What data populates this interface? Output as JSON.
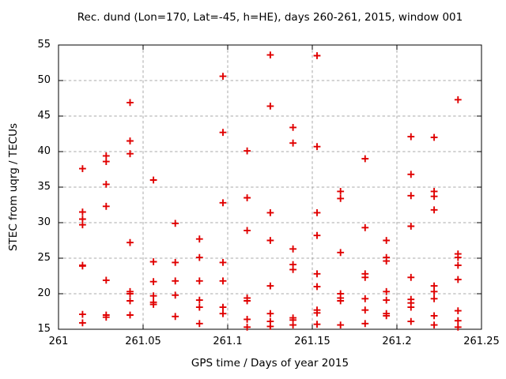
{
  "chart_data": {
    "type": "scatter",
    "title": "Rec. dund (Lon=170, Lat=-45, h=HE), days 260-261, 2015, window 001",
    "xlabel": "GPS time / Days of year 2015",
    "ylabel": "STEC from uqrg / TECUs",
    "xlim": [
      261,
      261.25
    ],
    "ylim": [
      15,
      55
    ],
    "xticks": [
      261,
      261.05,
      261.1,
      261.15,
      261.2,
      261.25
    ],
    "xtick_labels": [
      "261",
      "261.05",
      "261.1",
      "261.15",
      "261.2",
      "261.25"
    ],
    "yticks": [
      15,
      20,
      25,
      30,
      35,
      40,
      45,
      50,
      55
    ],
    "ytick_labels": [
      "15",
      "20",
      "25",
      "30",
      "35",
      "40",
      "45",
      "50",
      "55"
    ],
    "grid": true,
    "legend_position": "none",
    "marker": "plus",
    "marker_color": "#e00000",
    "grid_color": "#a8a8a8",
    "border_color": "#000000",
    "points": [
      [
        261.0142,
        37.6
      ],
      [
        261.0142,
        31.5
      ],
      [
        261.0142,
        30.5
      ],
      [
        261.0142,
        29.7
      ],
      [
        261.0142,
        24.0
      ],
      [
        261.0142,
        23.9
      ],
      [
        261.0142,
        17.1
      ],
      [
        261.0142,
        15.9
      ],
      [
        261.0282,
        39.4
      ],
      [
        261.0282,
        38.6
      ],
      [
        261.0282,
        35.4
      ],
      [
        261.0282,
        32.3
      ],
      [
        261.0282,
        21.9
      ],
      [
        261.0282,
        17.0
      ],
      [
        261.0282,
        16.7
      ],
      [
        261.0423,
        46.9
      ],
      [
        261.0423,
        41.5
      ],
      [
        261.0423,
        39.7
      ],
      [
        261.0423,
        27.2
      ],
      [
        261.0423,
        20.3
      ],
      [
        261.0423,
        20.0
      ],
      [
        261.0423,
        19.0
      ],
      [
        261.0423,
        17.0
      ],
      [
        261.0561,
        36.0
      ],
      [
        261.0561,
        24.5
      ],
      [
        261.0561,
        21.7
      ],
      [
        261.0561,
        19.7
      ],
      [
        261.0561,
        18.8
      ],
      [
        261.0561,
        18.5
      ],
      [
        261.069,
        29.9
      ],
      [
        261.069,
        24.4
      ],
      [
        261.069,
        21.8
      ],
      [
        261.069,
        19.8
      ],
      [
        261.069,
        16.8
      ],
      [
        261.0833,
        27.7
      ],
      [
        261.0833,
        25.1
      ],
      [
        261.0833,
        21.8
      ],
      [
        261.0833,
        19.1
      ],
      [
        261.0833,
        18.1
      ],
      [
        261.0833,
        15.8
      ],
      [
        261.0972,
        50.6
      ],
      [
        261.0972,
        42.7
      ],
      [
        261.0972,
        32.8
      ],
      [
        261.0972,
        24.4
      ],
      [
        261.0972,
        21.8
      ],
      [
        261.0972,
        18.1
      ],
      [
        261.0972,
        17.2
      ],
      [
        261.1115,
        40.1
      ],
      [
        261.1115,
        33.5
      ],
      [
        261.1115,
        28.9
      ],
      [
        261.1115,
        19.4
      ],
      [
        261.1115,
        19.0
      ],
      [
        261.1115,
        16.4
      ],
      [
        261.1115,
        15.3
      ],
      [
        261.1252,
        53.6
      ],
      [
        261.1252,
        46.4
      ],
      [
        261.1252,
        31.4
      ],
      [
        261.1252,
        27.5
      ],
      [
        261.1252,
        21.1
      ],
      [
        261.1252,
        17.2
      ],
      [
        261.1252,
        16.1
      ],
      [
        261.1252,
        15.4
      ],
      [
        261.1386,
        43.4
      ],
      [
        261.1386,
        41.2
      ],
      [
        261.1386,
        26.3
      ],
      [
        261.1386,
        24.1
      ],
      [
        261.1386,
        23.4
      ],
      [
        261.1386,
        16.6
      ],
      [
        261.1386,
        16.3
      ],
      [
        261.1386,
        15.6
      ],
      [
        261.1528,
        53.5
      ],
      [
        261.1528,
        40.7
      ],
      [
        261.1528,
        31.4
      ],
      [
        261.1528,
        28.2
      ],
      [
        261.1528,
        22.8
      ],
      [
        261.1528,
        21.0
      ],
      [
        261.1528,
        17.7
      ],
      [
        261.1528,
        17.3
      ],
      [
        261.1528,
        15.7
      ],
      [
        261.1667,
        34.4
      ],
      [
        261.1667,
        33.4
      ],
      [
        261.1667,
        25.8
      ],
      [
        261.1667,
        20.0
      ],
      [
        261.1667,
        19.4
      ],
      [
        261.1667,
        19.0
      ],
      [
        261.1667,
        15.6
      ],
      [
        261.1812,
        39.0
      ],
      [
        261.1812,
        29.3
      ],
      [
        261.1812,
        22.8
      ],
      [
        261.1812,
        22.3
      ],
      [
        261.1812,
        19.3
      ],
      [
        261.1812,
        17.7
      ],
      [
        261.1812,
        15.8
      ],
      [
        261.1938,
        27.5
      ],
      [
        261.1938,
        25.1
      ],
      [
        261.1938,
        24.6
      ],
      [
        261.1938,
        20.3
      ],
      [
        261.1938,
        19.1
      ],
      [
        261.1938,
        17.2
      ],
      [
        261.1938,
        16.9
      ],
      [
        261.2083,
        42.1
      ],
      [
        261.2083,
        36.8
      ],
      [
        261.2083,
        33.8
      ],
      [
        261.2083,
        29.5
      ],
      [
        261.2083,
        22.3
      ],
      [
        261.2083,
        19.2
      ],
      [
        261.2083,
        18.7
      ],
      [
        261.2083,
        18.1
      ],
      [
        261.2083,
        16.1
      ],
      [
        261.222,
        42.0
      ],
      [
        261.222,
        34.4
      ],
      [
        261.222,
        33.7
      ],
      [
        261.222,
        31.8
      ],
      [
        261.222,
        21.1
      ],
      [
        261.222,
        20.3
      ],
      [
        261.222,
        19.3
      ],
      [
        261.222,
        16.9
      ],
      [
        261.222,
        15.6
      ],
      [
        261.2361,
        47.3
      ],
      [
        261.2361,
        25.6
      ],
      [
        261.2361,
        25.1
      ],
      [
        261.2361,
        24.0
      ],
      [
        261.2361,
        22.0
      ],
      [
        261.2361,
        17.6
      ],
      [
        261.2361,
        16.2
      ],
      [
        261.2361,
        15.3
      ]
    ]
  }
}
